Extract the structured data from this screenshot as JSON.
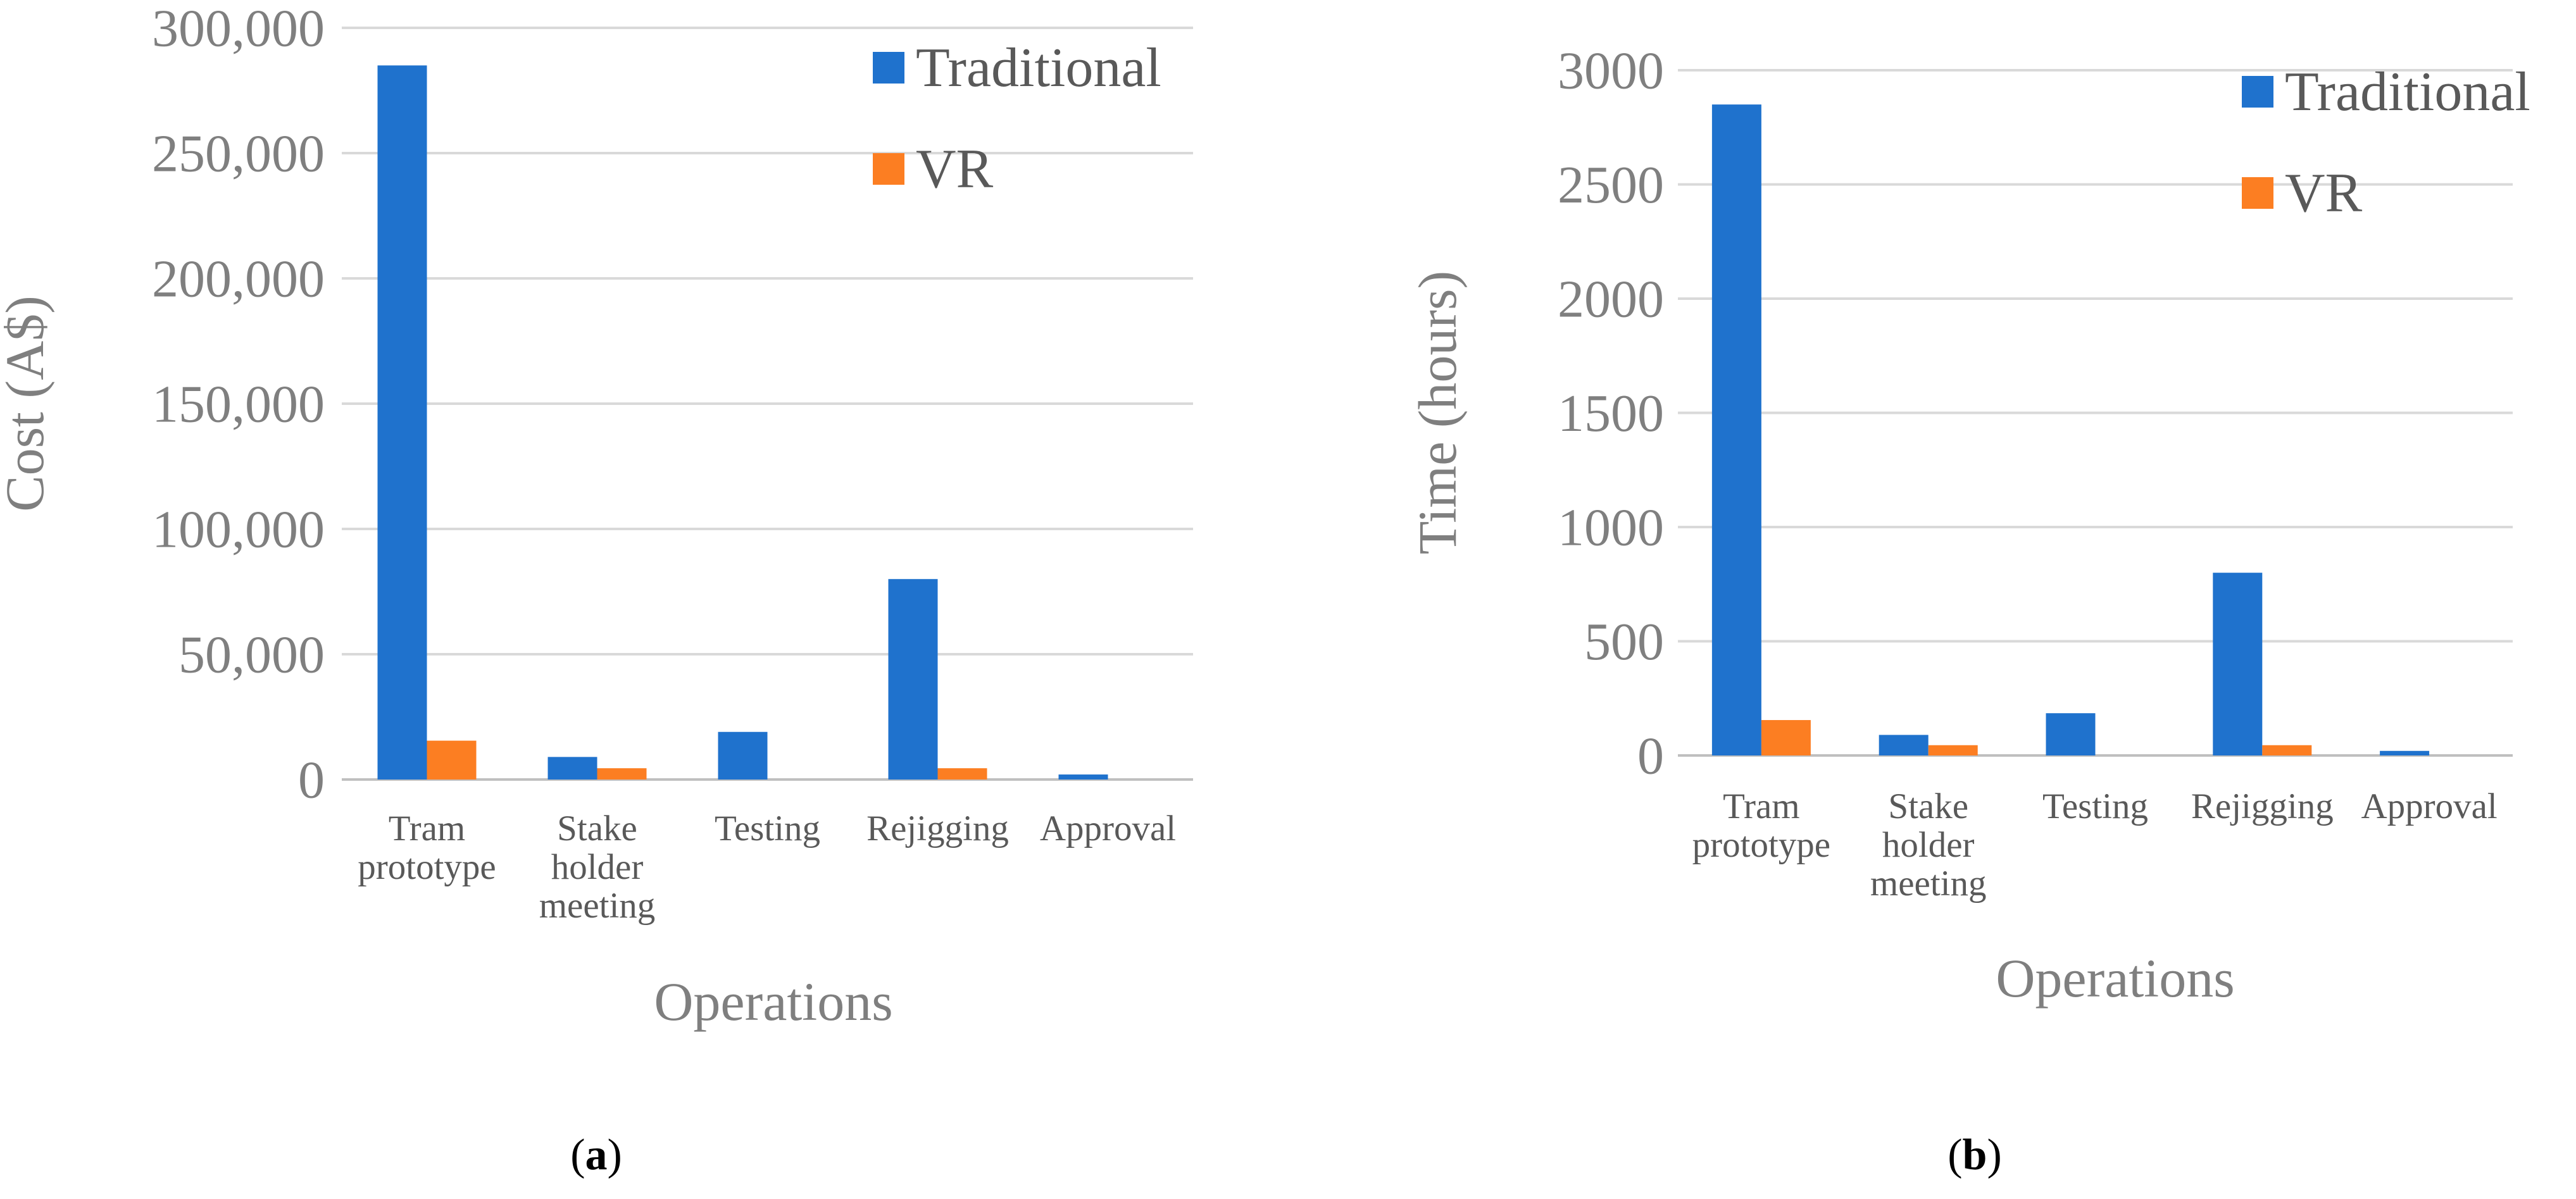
{
  "colors": {
    "traditional": "#1f72cd",
    "vr": "#fc7e22",
    "grid": "#d9d9d9",
    "axis": "#bfbfbf"
  },
  "chart_data": [
    {
      "id": "a",
      "type": "bar",
      "caption_letter": "a",
      "ylabel": "Cost (A$)",
      "xlabel": "Operations",
      "ylim": [
        0,
        300000
      ],
      "yticks": [
        0,
        50000,
        100000,
        150000,
        200000,
        250000,
        300000
      ],
      "ytick_labels": [
        "0",
        "50,000",
        "100,000",
        "150,000",
        "200,000",
        "250,000",
        "300,000"
      ],
      "categories": [
        [
          "Tram",
          "prototype"
        ],
        [
          "Stake",
          "holder",
          "meeting"
        ],
        [
          "Testing"
        ],
        [
          "Rejigging"
        ],
        [
          "Approval"
        ]
      ],
      "series": [
        {
          "name": "Traditional",
          "values": [
            285000,
            9000,
            19000,
            80000,
            2000
          ]
        },
        {
          "name": "VR",
          "values": [
            15500,
            4500,
            0,
            4500,
            0
          ]
        }
      ],
      "legend": [
        "Traditional",
        "VR"
      ],
      "legend_position": "top-right",
      "grid": true
    },
    {
      "id": "b",
      "type": "bar",
      "caption_letter": "b",
      "ylabel": "Time (hours)",
      "xlabel": "Operations",
      "ylim": [
        0,
        3000
      ],
      "yticks": [
        0,
        500,
        1000,
        1500,
        2000,
        2500,
        3000
      ],
      "ytick_labels": [
        "0",
        "500",
        "1000",
        "1500",
        "2000",
        "2500",
        "3000"
      ],
      "categories": [
        [
          "Tram",
          "prototype"
        ],
        [
          "Stake",
          "holder",
          "meeting"
        ],
        [
          "Testing"
        ],
        [
          "Rejigging"
        ],
        [
          "Approval"
        ]
      ],
      "series": [
        {
          "name": "Traditional",
          "values": [
            2850,
            90,
            185,
            800,
            20
          ]
        },
        {
          "name": "VR",
          "values": [
            155,
            45,
            0,
            45,
            0
          ]
        }
      ],
      "legend": [
        "Traditional",
        "VR"
      ],
      "legend_position": "top-right",
      "grid": true
    }
  ]
}
